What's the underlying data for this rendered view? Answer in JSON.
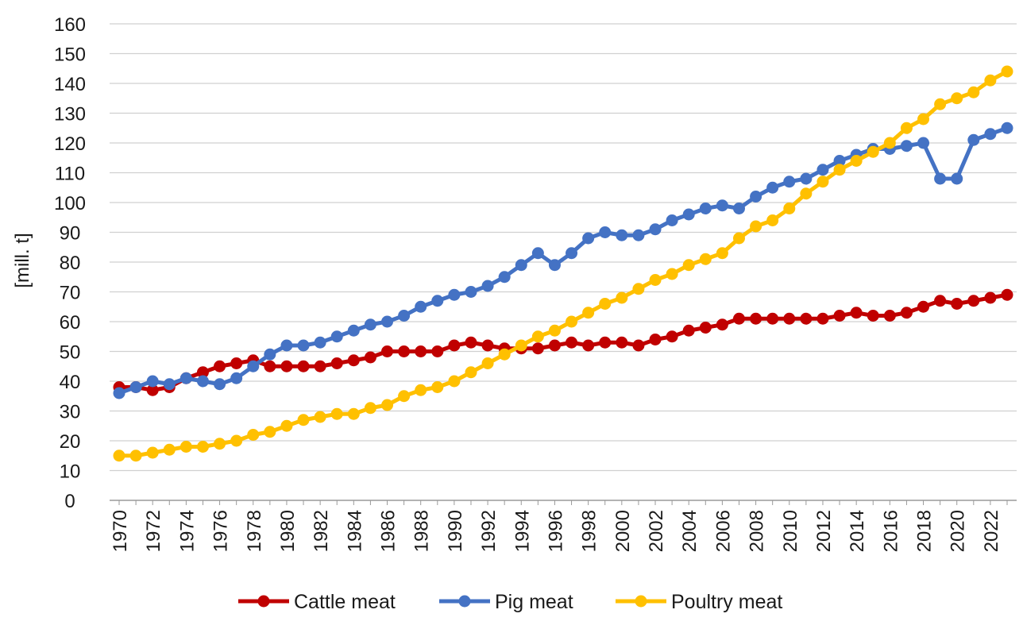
{
  "chart_data": {
    "type": "line",
    "title": "",
    "xlabel": "",
    "ylabel": "[mill. t]",
    "ylim": [
      0,
      160
    ],
    "yticks": [
      "0",
      "10",
      "20",
      "30",
      "40",
      "50",
      "60",
      "70",
      "80",
      "90",
      "100",
      "110",
      "120",
      "130",
      "140",
      "150",
      "160"
    ],
    "y_tick_values": [
      0,
      10,
      20,
      30,
      40,
      50,
      60,
      70,
      80,
      90,
      100,
      110,
      120,
      130,
      140,
      150,
      160
    ],
    "x_tick_labels": [
      "1970",
      "1972",
      "1974",
      "1976",
      "1978",
      "1980",
      "1982",
      "1984",
      "1986",
      "1988",
      "1990",
      "1992",
      "1994",
      "1996",
      "1998",
      "2000",
      "2002",
      "2004",
      "2006",
      "2008",
      "2010",
      "2012",
      "2014",
      "2016",
      "2018",
      "2020",
      "2022"
    ],
    "x": [
      1970,
      1971,
      1972,
      1973,
      1974,
      1975,
      1976,
      1977,
      1978,
      1979,
      1980,
      1981,
      1982,
      1983,
      1984,
      1985,
      1986,
      1987,
      1988,
      1989,
      1990,
      1991,
      1992,
      1993,
      1994,
      1995,
      1996,
      1997,
      1998,
      1999,
      2000,
      2001,
      2002,
      2003,
      2004,
      2005,
      2006,
      2007,
      2008,
      2009,
      2010,
      2011,
      2012,
      2013,
      2014,
      2015,
      2016,
      2017,
      2018,
      2019,
      2020,
      2021,
      2022,
      2023
    ],
    "grid": true,
    "legend_position": "bottom",
    "series": [
      {
        "name": "Cattle meat",
        "color": "#c00000",
        "values": [
          38,
          38,
          37,
          38,
          41,
          43,
          45,
          46,
          47,
          45,
          45,
          45,
          45,
          46,
          47,
          48,
          50,
          50,
          50,
          50,
          52,
          53,
          52,
          51,
          51,
          51,
          52,
          53,
          52,
          53,
          53,
          52,
          54,
          55,
          57,
          58,
          59,
          61,
          61,
          61,
          61,
          61,
          61,
          62,
          63,
          62,
          62,
          63,
          65,
          67,
          66,
          67,
          68,
          69
        ]
      },
      {
        "name": "Pig meat",
        "color": "#4472c4",
        "values": [
          36,
          38,
          40,
          39,
          41,
          40,
          39,
          41,
          45,
          49,
          52,
          52,
          53,
          55,
          57,
          59,
          60,
          62,
          65,
          67,
          69,
          70,
          72,
          75,
          79,
          83,
          79,
          83,
          88,
          90,
          89,
          89,
          91,
          94,
          96,
          98,
          99,
          98,
          102,
          105,
          107,
          108,
          111,
          114,
          116,
          118,
          118,
          119,
          120,
          108,
          108,
          121,
          123,
          125
        ]
      },
      {
        "name": "Poultry meat",
        "color": "#ffc000",
        "values": [
          15,
          15,
          16,
          17,
          18,
          18,
          19,
          20,
          22,
          23,
          25,
          27,
          28,
          29,
          29,
          31,
          32,
          35,
          37,
          38,
          40,
          43,
          46,
          49,
          52,
          55,
          57,
          60,
          63,
          66,
          68,
          71,
          74,
          76,
          79,
          81,
          83,
          88,
          92,
          94,
          98,
          103,
          107,
          111,
          114,
          117,
          120,
          125,
          128,
          133,
          135,
          137,
          141,
          144
        ]
      }
    ]
  }
}
